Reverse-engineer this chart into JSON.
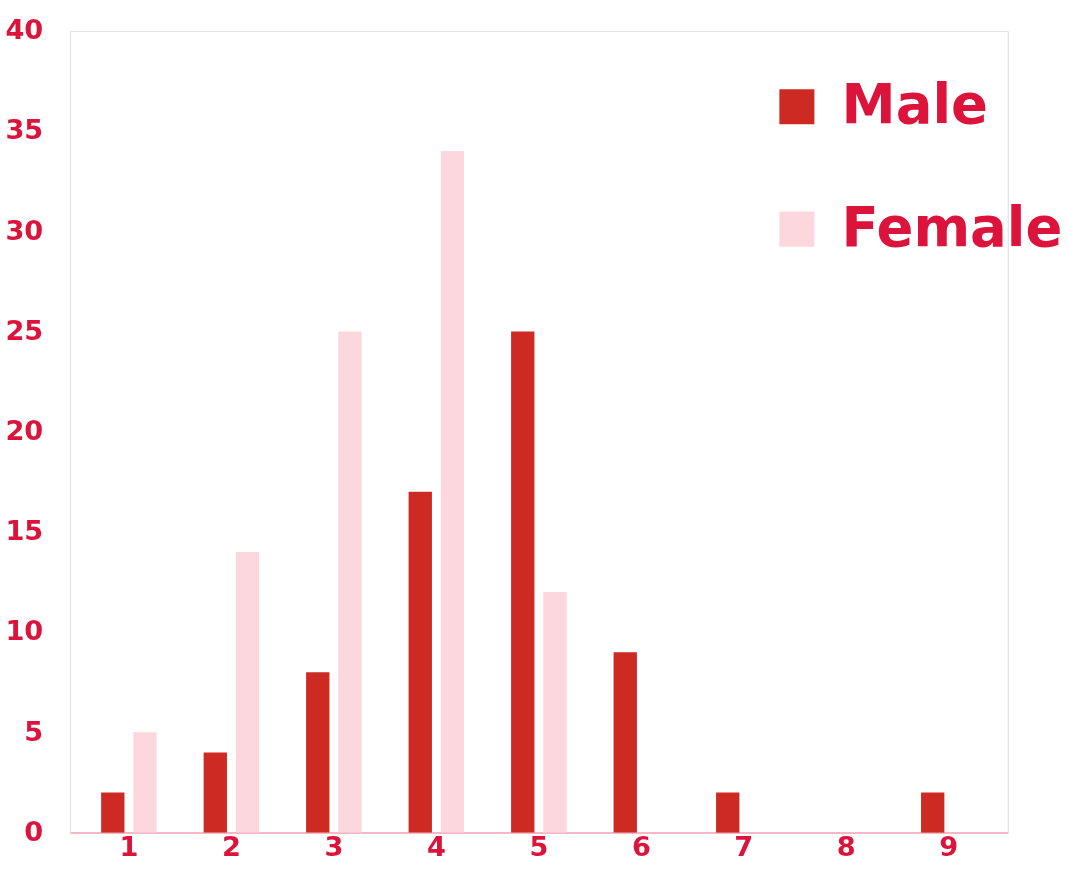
{
  "chart_data": {
    "type": "bar",
    "categories": [
      "1",
      "2",
      "3",
      "4",
      "5",
      "6",
      "7",
      "8",
      "9"
    ],
    "series": [
      {
        "name": "Male",
        "color": "#cc2a22",
        "values": [
          2,
          4,
          8,
          17,
          25,
          9,
          2,
          0,
          2
        ]
      },
      {
        "name": "Female",
        "color": "#fcd7dd",
        "values": [
          5,
          14,
          25,
          34,
          12,
          0,
          0,
          0,
          0
        ]
      }
    ],
    "ylim": [
      0,
      40
    ],
    "yticks": [
      0,
      5,
      10,
      15,
      20,
      25,
      30,
      35,
      40
    ],
    "grid": false,
    "legend": "top right"
  }
}
